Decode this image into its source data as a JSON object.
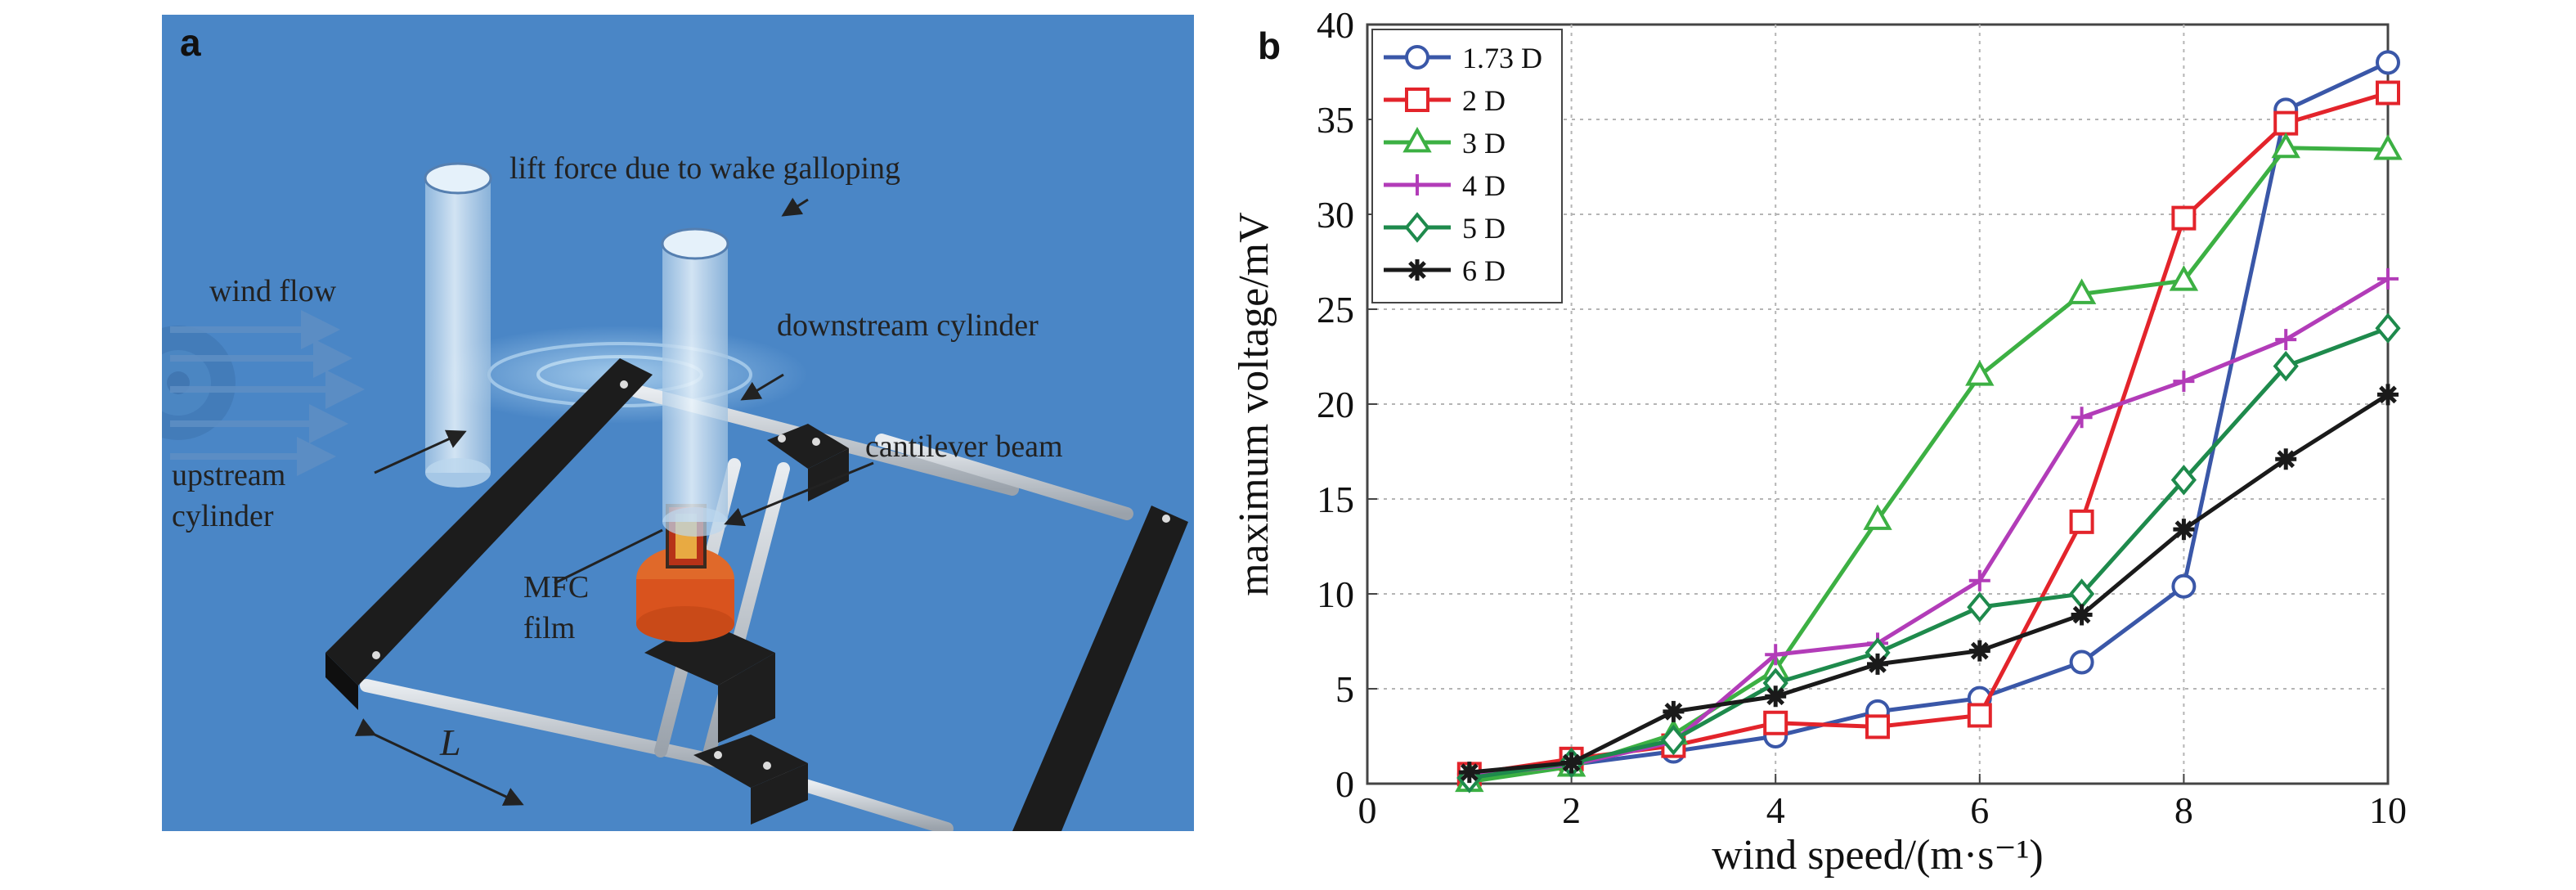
{
  "panel_a": {
    "letter": "a",
    "labels": {
      "lift": "lift force due to wake galloping",
      "wind": "wind flow",
      "downstream": "downstream cylinder",
      "cantilever": "cantilever beam",
      "upstream_1": "upstream",
      "upstream_2": "cylinder",
      "mfc_1": "MFC",
      "mfc_2": "film",
      "spacing": "L"
    },
    "colors": {
      "background": "#4a86c6",
      "block": "#1c1c1c",
      "rod": "#c9ced4",
      "cylinder": "#cfe3f2",
      "film": "#d9531e"
    }
  },
  "panel_b": {
    "letter": "b",
    "colors": [
      "#3a57a8",
      "#e3242b",
      "#3cb043",
      "#b23cb8",
      "#1e8a4c",
      "#1a1a1a"
    ],
    "markers": [
      "circle",
      "square",
      "triangle",
      "plus",
      "diamond",
      "asterisk"
    ]
  },
  "chart_data": {
    "type": "line",
    "title": "",
    "xlabel": "wind speed/(m·s⁻¹)",
    "ylabel": "maximum voltage/mV",
    "xlim": [
      0,
      10
    ],
    "ylim": [
      0,
      40
    ],
    "xticks": [
      "0",
      "2",
      "4",
      "6",
      "8",
      "10"
    ],
    "yticks": [
      "0",
      "5",
      "10",
      "15",
      "20",
      "25",
      "30",
      "35",
      "40"
    ],
    "grid": true,
    "legend_position": "top-left",
    "x": [
      1,
      2,
      3,
      4,
      5,
      6,
      7,
      8,
      9,
      10
    ],
    "series": [
      {
        "name": "1.73 D",
        "values": [
          0.5,
          1.0,
          1.7,
          2.5,
          3.8,
          4.5,
          6.4,
          10.4,
          35.5,
          38.0
        ]
      },
      {
        "name": "2 D",
        "values": [
          0.5,
          1.3,
          2.0,
          3.2,
          3.0,
          3.6,
          13.8,
          29.8,
          34.8,
          36.4
        ]
      },
      {
        "name": "3 D",
        "values": [
          0.1,
          0.9,
          2.6,
          6.0,
          13.9,
          21.5,
          25.8,
          26.5,
          33.5,
          33.4
        ]
      },
      {
        "name": "4 D",
        "values": [
          0.4,
          1.0,
          2.2,
          6.8,
          7.4,
          10.7,
          19.3,
          21.2,
          23.4,
          26.6
        ]
      },
      {
        "name": "5 D",
        "values": [
          0.3,
          1.1,
          2.3,
          5.3,
          6.9,
          9.3,
          10.0,
          16.0,
          22.0,
          24.0
        ]
      },
      {
        "name": "6 D",
        "values": [
          0.6,
          1.1,
          3.8,
          4.6,
          6.3,
          7.0,
          8.9,
          13.4,
          17.1,
          20.5
        ]
      }
    ]
  }
}
